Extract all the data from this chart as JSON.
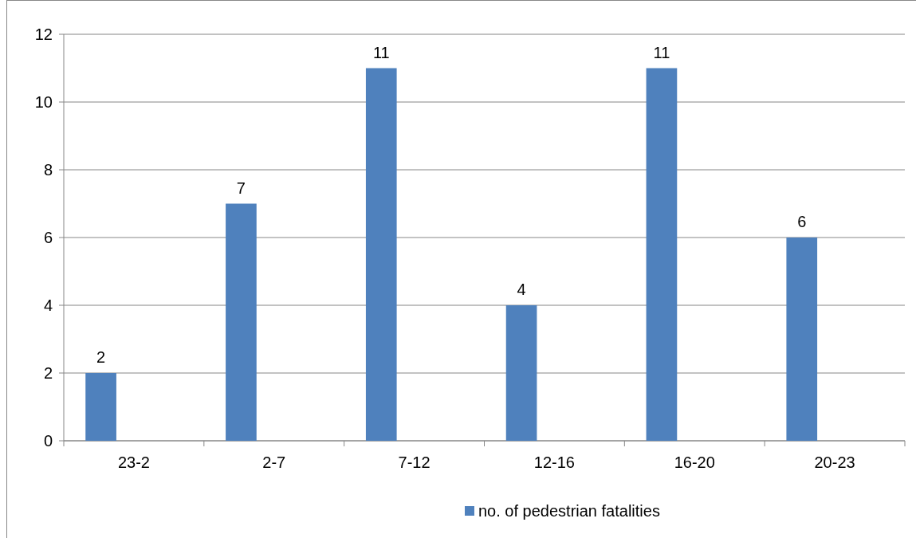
{
  "chart_data": {
    "type": "bar",
    "categories": [
      "23-2",
      "2-7",
      "7-12",
      "12-16",
      "16-20",
      "20-23"
    ],
    "series": [
      {
        "name": "no. of pedestrian fatalities",
        "color": "#4f81bd",
        "values": [
          2,
          7,
          11,
          4,
          11,
          6
        ]
      }
    ],
    "ylim": [
      0,
      12
    ],
    "yticks": [
      0,
      2,
      4,
      6,
      8,
      10,
      12
    ],
    "grid": "y",
    "data_labels": true,
    "legend": "bottom"
  }
}
